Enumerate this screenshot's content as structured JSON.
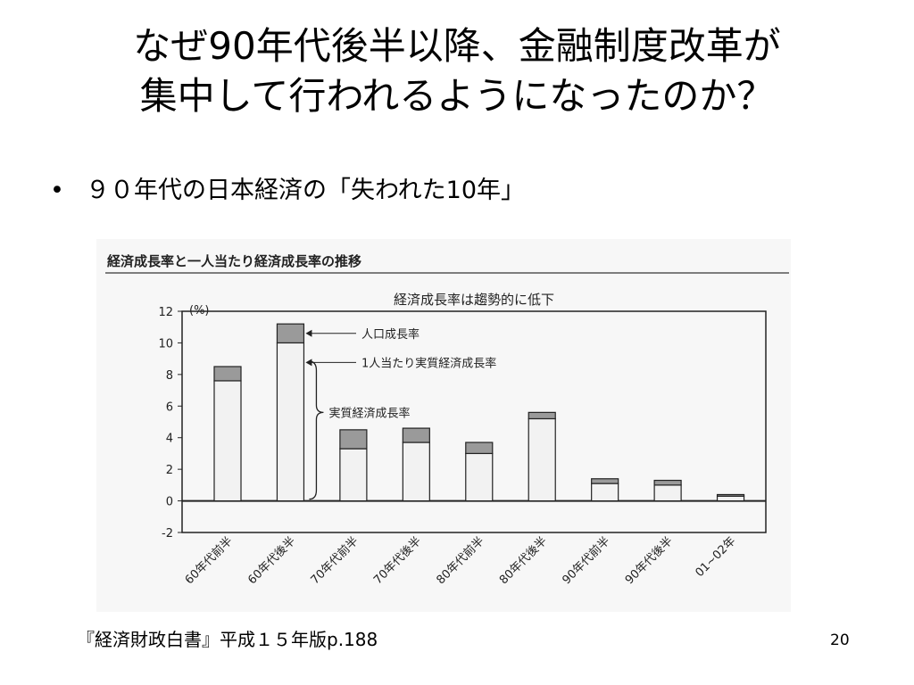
{
  "slide": {
    "title_line1": "なぜ90年代後半以降、金融制度改革が",
    "title_line2": "集中して行われるようになったのか？",
    "bullet_mark": "•",
    "bullet_text": "９０年代の日本経済の「失われた10年」",
    "source": "『経済財政白書』平成１５年版p.188",
    "page_number": "20"
  },
  "chart_data": {
    "type": "bar",
    "stacked": true,
    "header": "経済成長率と一人当たり経済成長率の推移",
    "title": "経済成長率は趨勢的に低下",
    "ylabel": "(%)",
    "ylim": [
      -2,
      12
    ],
    "yticks": [
      -2,
      0,
      2,
      4,
      6,
      8,
      10,
      12
    ],
    "categories": [
      "60年代前半",
      "60年代後半",
      "70年代前半",
      "70年代後半",
      "80年代前半",
      "80年代後半",
      "90年代前半",
      "90年代後半",
      "01~02年"
    ],
    "series": [
      {
        "name": "1人当たり実質経済成長率",
        "values": [
          7.6,
          10.0,
          3.3,
          3.7,
          3.0,
          5.2,
          1.1,
          1.0,
          0.3
        ]
      },
      {
        "name": "人口成長率",
        "values": [
          0.9,
          1.2,
          1.2,
          0.9,
          0.7,
          0.4,
          0.3,
          0.3,
          0.1
        ]
      }
    ],
    "annotations": {
      "population": "人口成長率",
      "per_capita": "1人当たり実質経済成長率",
      "real": "実質経済成長率"
    },
    "colors": {
      "per_capita": "#f2f2f2",
      "population": "#9a9a9a",
      "outline": "#222222"
    }
  }
}
